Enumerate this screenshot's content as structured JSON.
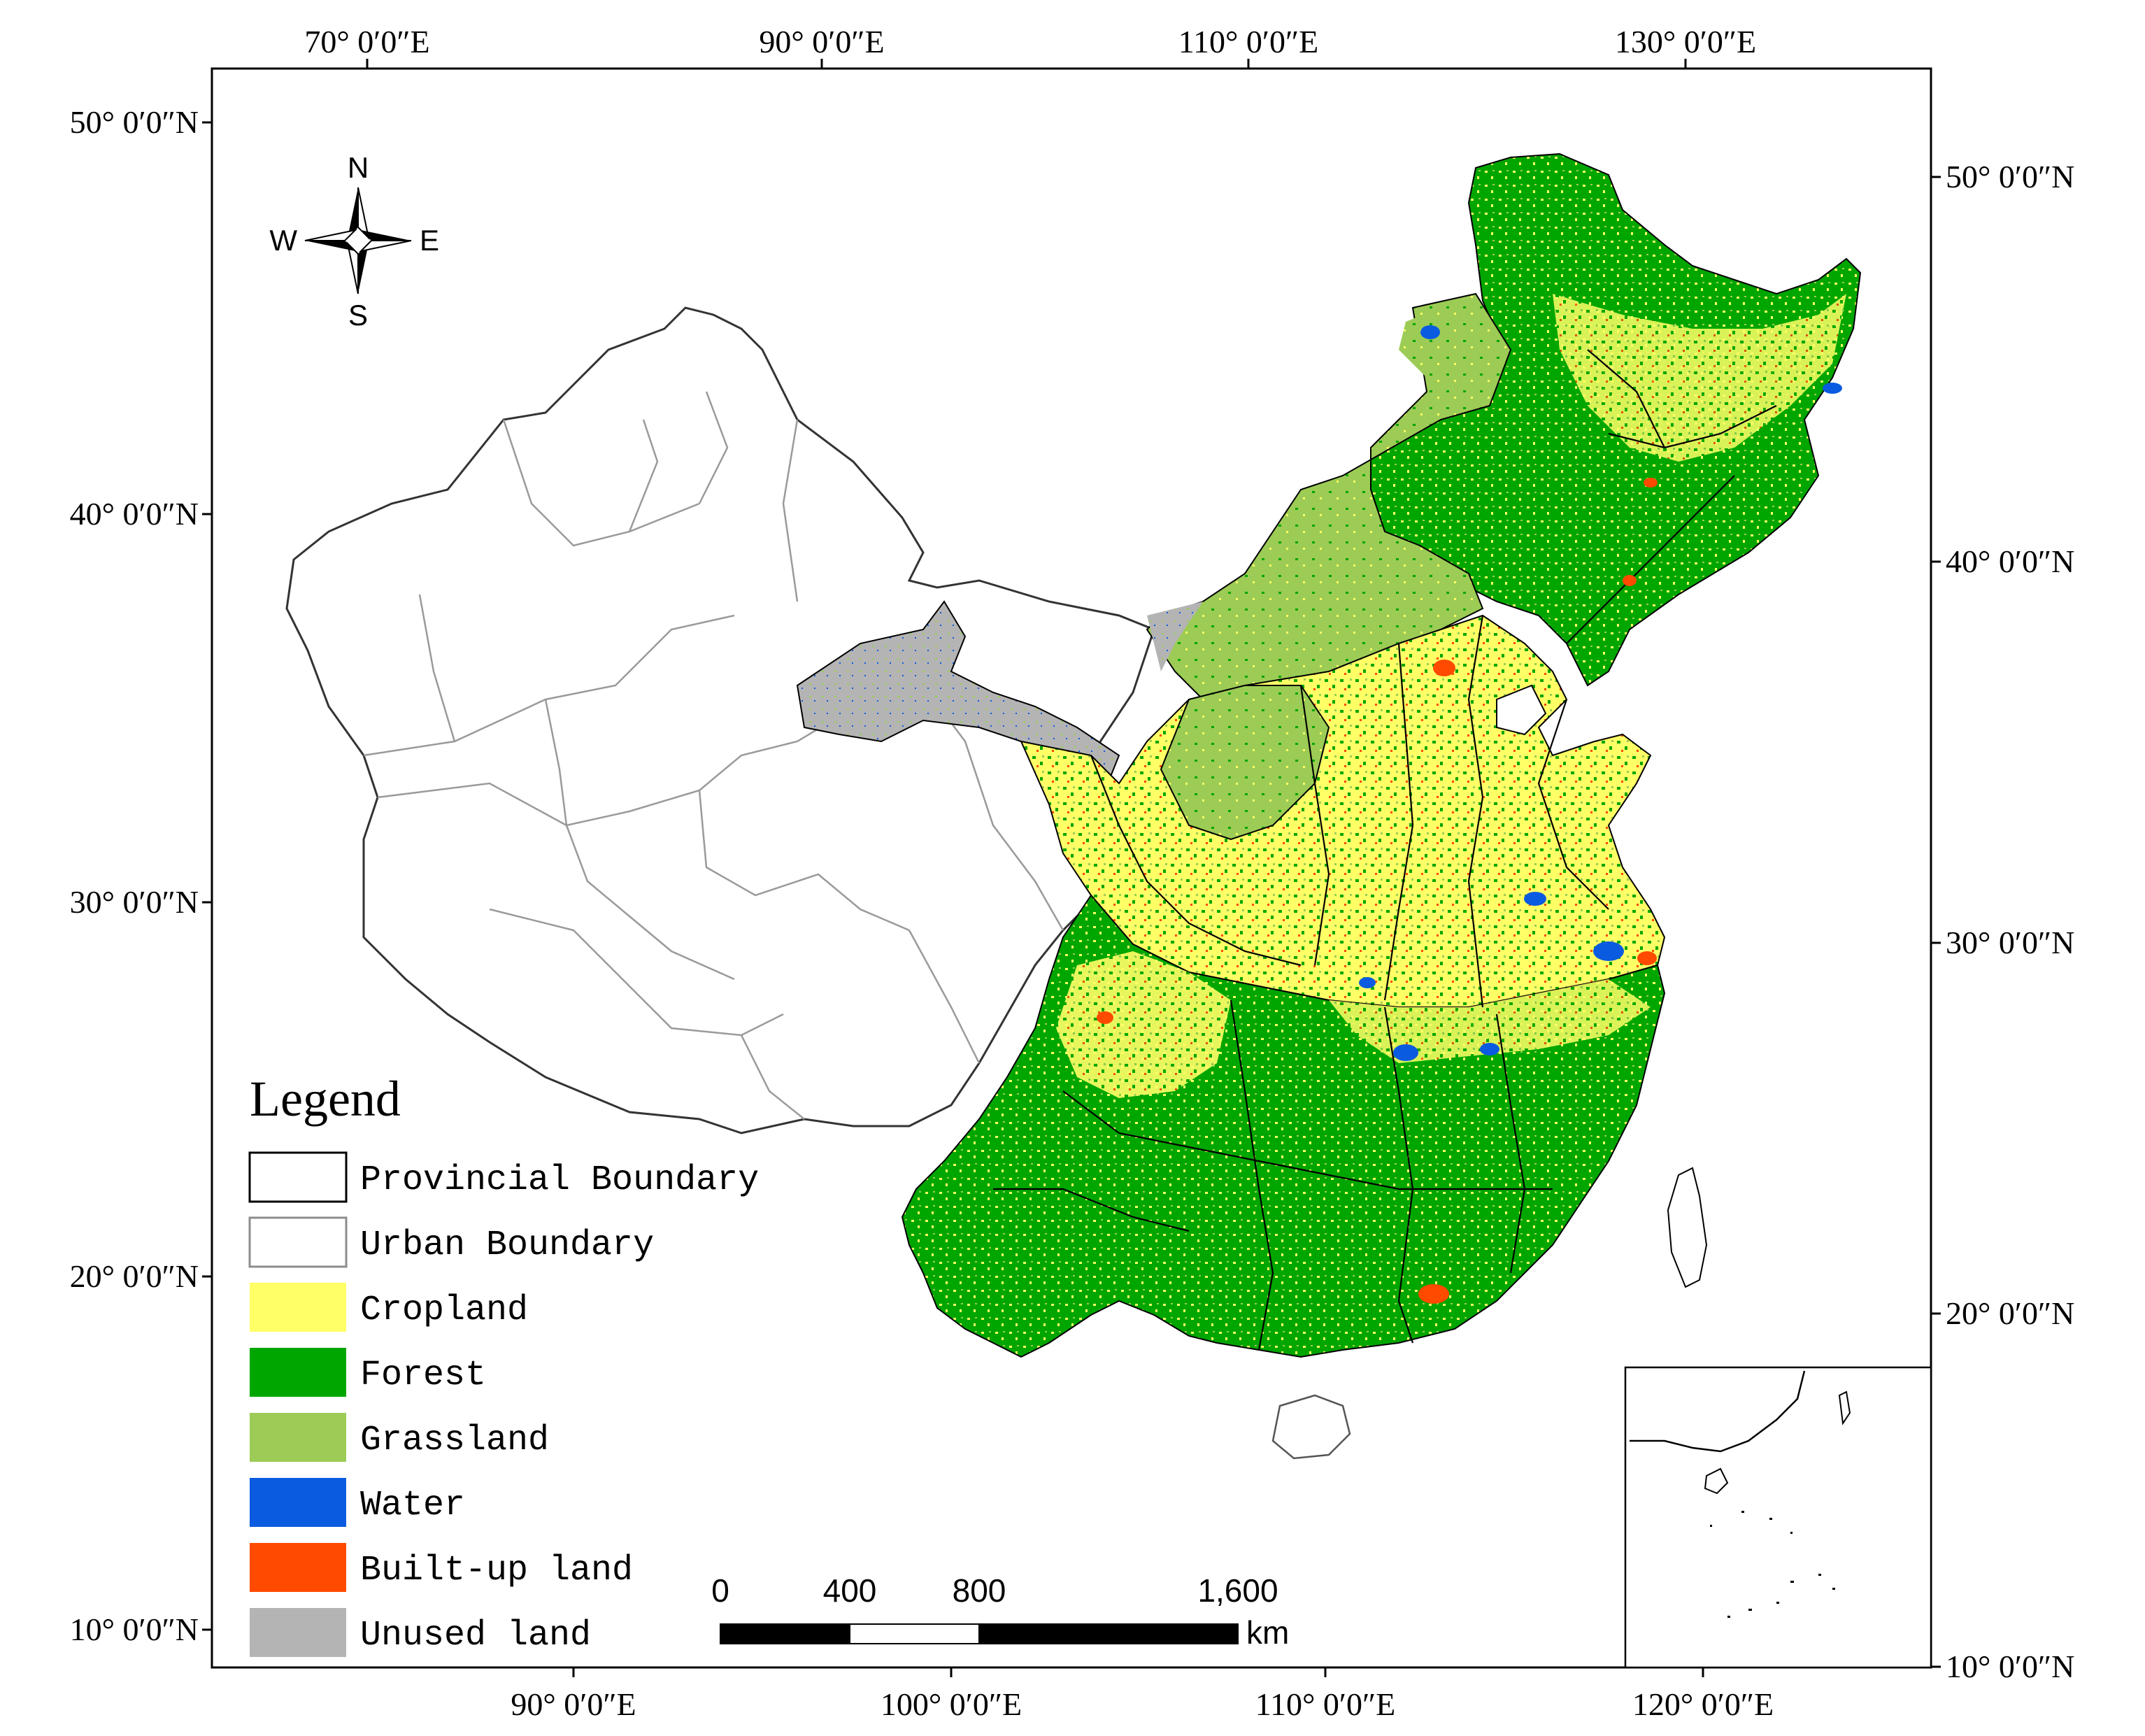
{
  "graticule": {
    "top_lon_labels": [
      "70° 0′0″E",
      "90° 0′0″E",
      "110° 0′0″E",
      "130° 0′0″E"
    ],
    "bottom_lon_labels": [
      "90° 0′0″E",
      "100° 0′0″E",
      "110° 0′0″E",
      "120° 0′0″E"
    ],
    "left_lat_labels": [
      "50° 0′0″N",
      "40° 0′0″N",
      "30° 0′0″N",
      "20° 0′0″N",
      "10° 0′0″N"
    ],
    "right_lat_labels": [
      "50° 0′0″N",
      "40° 0′0″N",
      "30° 0′0″N",
      "20° 0′0″N",
      "10° 0′0″N"
    ]
  },
  "north_arrow": {
    "n": "N",
    "s": "S",
    "e": "E",
    "w": "W"
  },
  "legend": {
    "title": "Legend",
    "items": [
      {
        "label": "Provincial Boundary",
        "swatch": "outline",
        "color": "#000000"
      },
      {
        "label": "Urban Boundary",
        "swatch": "outline",
        "color": "#8c8c8c"
      },
      {
        "label": "Cropland",
        "swatch": "fill",
        "color": "#ffff66"
      },
      {
        "label": "Forest",
        "swatch": "fill",
        "color": "#00a600"
      },
      {
        "label": "Grassland",
        "swatch": "fill",
        "color": "#9ccc55"
      },
      {
        "label": "Water",
        "swatch": "fill",
        "color": "#0a5be0"
      },
      {
        "label": "Built-up land",
        "swatch": "fill",
        "color": "#ff4a00"
      },
      {
        "label": "Unused land",
        "swatch": "fill",
        "color": "#b4b4b4"
      }
    ]
  },
  "scale_bar": {
    "labels": [
      "0",
      "400",
      "800",
      "1,600"
    ],
    "unit": "km"
  }
}
